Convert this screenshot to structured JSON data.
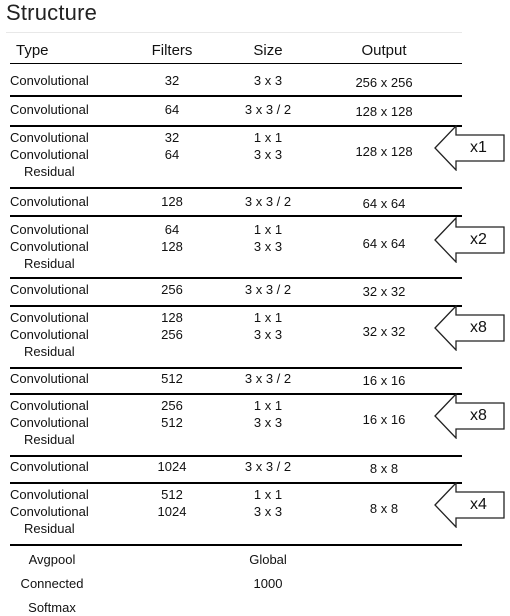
{
  "title": "Structure",
  "headers": {
    "type": "Type",
    "filters": "Filters",
    "size": "Size",
    "output": "Output"
  },
  "rows": [
    {
      "type": [
        "Convolutional"
      ],
      "filters": [
        "32"
      ],
      "size": [
        "3 x 3"
      ],
      "output": "256 x 256"
    },
    {
      "type": [
        "Convolutional"
      ],
      "filters": [
        "64"
      ],
      "size": [
        "3 x 3 / 2"
      ],
      "output": "128 x 128"
    },
    {
      "type": [
        "Convolutional",
        "Convolutional",
        "Residual"
      ],
      "filters": [
        "32",
        "64"
      ],
      "size": [
        "1 x 1",
        "3 x 3"
      ],
      "output": "128 x 128",
      "repeat": "x1"
    },
    {
      "type": [
        "Convolutional"
      ],
      "filters": [
        "128"
      ],
      "size": [
        "3 x 3 / 2"
      ],
      "output": "64 x 64"
    },
    {
      "type": [
        "Convolutional",
        "Convolutional",
        "Residual"
      ],
      "filters": [
        "64",
        "128"
      ],
      "size": [
        "1 x 1",
        "3 x 3"
      ],
      "output": "64 x 64",
      "repeat": "x2"
    },
    {
      "type": [
        "Convolutional"
      ],
      "filters": [
        "256"
      ],
      "size": [
        "3 x 3 / 2"
      ],
      "output": "32 x 32"
    },
    {
      "type": [
        "Convolutional",
        "Convolutional",
        "Residual"
      ],
      "filters": [
        "128",
        "256"
      ],
      "size": [
        "1 x 1",
        "3 x 3"
      ],
      "output": "32 x 32",
      "repeat": "x8"
    },
    {
      "type": [
        "Convolutional"
      ],
      "filters": [
        "512"
      ],
      "size": [
        "3 x 3 / 2"
      ],
      "output": "16 x 16"
    },
    {
      "type": [
        "Convolutional",
        "Convolutional",
        "Residual"
      ],
      "filters": [
        "256",
        "512"
      ],
      "size": [
        "1 x 1",
        "3 x 3"
      ],
      "output": "16 x 16",
      "repeat": "x8"
    },
    {
      "type": [
        "Convolutional"
      ],
      "filters": [
        "1024"
      ],
      "size": [
        "3 x 3 / 2"
      ],
      "output": "8 x 8"
    },
    {
      "type": [
        "Convolutional",
        "Convolutional",
        "Residual"
      ],
      "filters": [
        "512",
        "1024"
      ],
      "size": [
        "1 x 1",
        "3 x 3"
      ],
      "output": "8 x 8",
      "repeat": "x4"
    }
  ],
  "tail": [
    {
      "type": "Avgpool",
      "size": "Global"
    },
    {
      "type": "Connected",
      "size": "1000"
    },
    {
      "type": "Softmax",
      "size": ""
    }
  ]
}
